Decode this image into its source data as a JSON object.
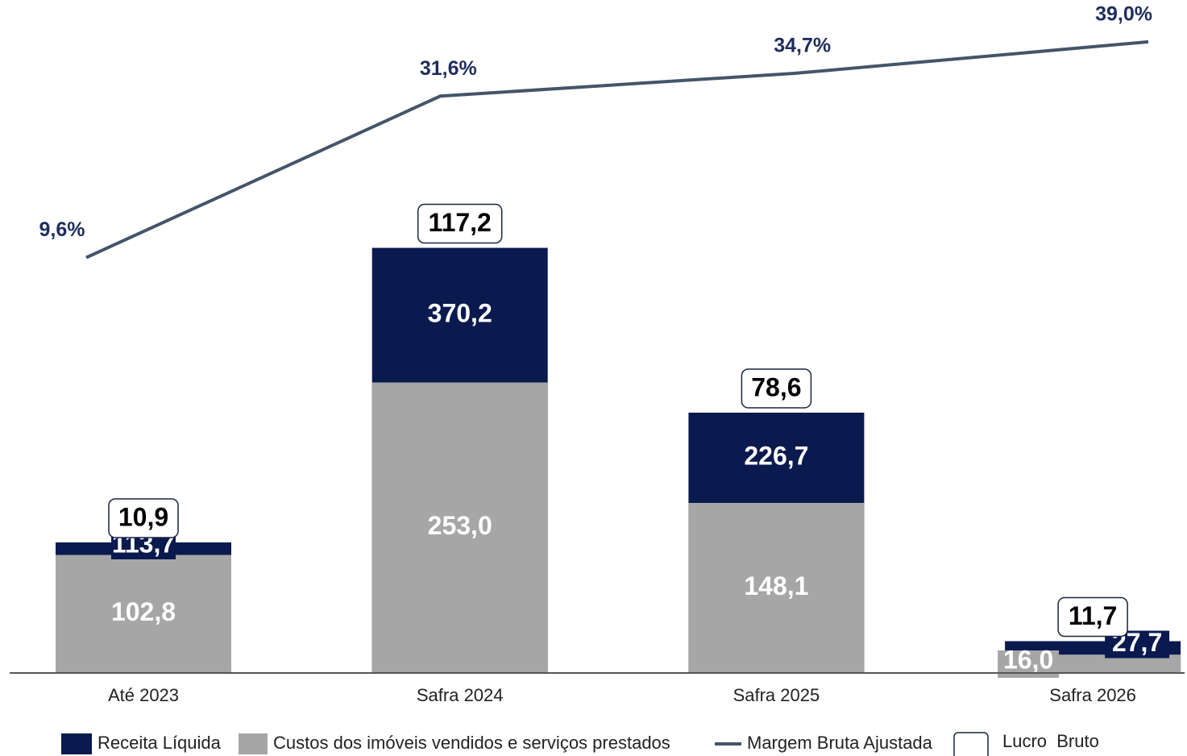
{
  "chart_data": {
    "type": "bar",
    "categories": [
      "Até 2023",
      "Safra 2024",
      "Safra 2025",
      "Safra 2026"
    ],
    "series": [
      {
        "name": "Receita Líquida",
        "color": "#0a1a4f",
        "values": [
          113.7,
          370.2,
          226.7,
          27.7
        ],
        "value_labels": [
          "113,7",
          "370,2",
          "226,7",
          "27,7"
        ]
      },
      {
        "name": "Custos dos imóveis vendidos e serviços prestados",
        "color": "#a6a6a6",
        "values": [
          102.8,
          253.0,
          148.1,
          16.0
        ],
        "value_labels": [
          "102,8",
          "253,0",
          "148,1",
          "16,0"
        ]
      },
      {
        "name": "Margem Bruta Ajustada",
        "type": "line",
        "axis": "y2",
        "color": "#44546a",
        "values": [
          9.6,
          31.6,
          34.7,
          39.0
        ],
        "value_labels": [
          "9,6%",
          "31,6%",
          "34,7%",
          "39,0%"
        ]
      },
      {
        "name": "Lucro  Bruto",
        "type": "label",
        "color": "#ffffff",
        "values": [
          10.9,
          117.2,
          78.6,
          11.7
        ],
        "value_labels": [
          "10,9",
          "117,2",
          "78,6",
          "11,7"
        ]
      }
    ],
    "ylim": [
      0,
      572
    ],
    "y2lim": [
      -47,
      42.5
    ]
  }
}
